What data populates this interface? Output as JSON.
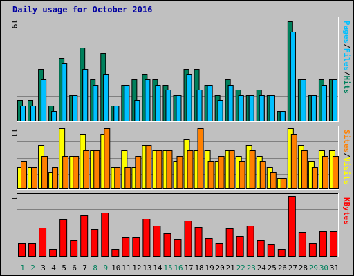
{
  "title": "Daily usage for October 2016",
  "colors": {
    "hits": "#00805c",
    "files": "#00c0ff",
    "pages": "#00c0ff",
    "visits": "#ffff00",
    "sites": "#ff8000",
    "kbytes": "#ff0000",
    "weekend_label": "#00805c",
    "weekday_label": "#000000",
    "panel_bg": "#c0c0c0",
    "grid": "#808080"
  },
  "legends": {
    "top": [
      "Pages",
      "/",
      "Files",
      "/",
      "Hits"
    ],
    "middle": [
      "Sites",
      "/",
      "Visits"
    ],
    "bottom": [
      "KBytes"
    ]
  },
  "chart_data": [
    {
      "type": "bar",
      "panel": "top",
      "y_max_label": "19",
      "ylim": [
        0,
        19
      ],
      "categories": [
        "1",
        "2",
        "3",
        "4",
        "5",
        "6",
        "7",
        "8",
        "9",
        "10",
        "11",
        "12",
        "13",
        "14",
        "15",
        "16",
        "17",
        "18",
        "19",
        "20",
        "21",
        "22",
        "23",
        "24",
        "25",
        "26",
        "27",
        "28",
        "29",
        "30",
        "31"
      ],
      "weekend_days": [
        "1",
        "2",
        "8",
        "9",
        "15",
        "16",
        "22",
        "23",
        "29",
        "30"
      ],
      "series": [
        {
          "name": "Hits",
          "values": [
            4,
            4,
            10,
            3,
            12,
            5,
            14,
            8,
            13,
            3,
            7,
            8,
            9,
            8,
            7,
            5,
            10,
            10,
            7,
            5,
            8,
            6,
            5,
            6,
            5,
            2,
            19,
            8,
            5,
            8,
            8
          ]
        },
        {
          "name": "Files",
          "values": [
            3,
            3,
            8,
            2,
            11,
            5,
            10,
            7,
            9,
            3,
            7,
            4,
            8,
            7,
            6,
            5,
            9,
            6,
            7,
            4,
            7,
            5,
            5,
            5,
            5,
            2,
            17,
            8,
            5,
            7,
            8
          ]
        },
        {
          "name": "Pages",
          "values": [
            3,
            3,
            8,
            2,
            11,
            5,
            10,
            7,
            9,
            3,
            7,
            4,
            8,
            7,
            6,
            5,
            9,
            6,
            7,
            4,
            7,
            5,
            5,
            5,
            5,
            2,
            17,
            8,
            5,
            7,
            8
          ]
        }
      ]
    },
    {
      "type": "bar",
      "panel": "middle",
      "y_max_label": "11",
      "ylim": [
        0,
        11
      ],
      "categories": [
        "1",
        "2",
        "3",
        "4",
        "5",
        "6",
        "7",
        "8",
        "9",
        "10",
        "11",
        "12",
        "13",
        "14",
        "15",
        "16",
        "17",
        "18",
        "19",
        "20",
        "21",
        "22",
        "23",
        "24",
        "25",
        "26",
        "27",
        "28",
        "29",
        "30",
        "31"
      ],
      "series": [
        {
          "name": "Visits",
          "values": [
            4,
            4,
            8,
            3,
            11,
            6,
            10,
            7,
            10,
            4,
            7,
            4,
            8,
            7,
            7,
            5,
            9,
            7,
            7,
            5,
            7,
            6,
            8,
            6,
            4,
            2,
            11,
            8,
            5,
            7,
            7
          ]
        },
        {
          "name": "Sites",
          "values": [
            5,
            4,
            6,
            4,
            6,
            6,
            7,
            7,
            11,
            4,
            4,
            6,
            8,
            7,
            7,
            6,
            7,
            11,
            5,
            6,
            7,
            5,
            7,
            5,
            3,
            2,
            10,
            7,
            4,
            6,
            6
          ]
        }
      ]
    },
    {
      "type": "bar",
      "panel": "bottom",
      "y_max_label": "1",
      "ylim": [
        0,
        1
      ],
      "categories": [
        "1",
        "2",
        "3",
        "4",
        "5",
        "6",
        "7",
        "8",
        "9",
        "10",
        "11",
        "12",
        "13",
        "14",
        "15",
        "16",
        "17",
        "18",
        "19",
        "20",
        "21",
        "22",
        "23",
        "24",
        "25",
        "26",
        "27",
        "28",
        "29",
        "30",
        "31"
      ],
      "series": [
        {
          "name": "KBytes",
          "values": [
            0.23,
            0.23,
            0.48,
            0.12,
            0.61,
            0.27,
            0.68,
            0.45,
            0.73,
            0.12,
            0.32,
            0.32,
            0.63,
            0.51,
            0.39,
            0.28,
            0.59,
            0.49,
            0.31,
            0.23,
            0.47,
            0.34,
            0.51,
            0.27,
            0.2,
            0.12,
            1.0,
            0.41,
            0.23,
            0.42,
            0.42
          ]
        }
      ]
    }
  ]
}
